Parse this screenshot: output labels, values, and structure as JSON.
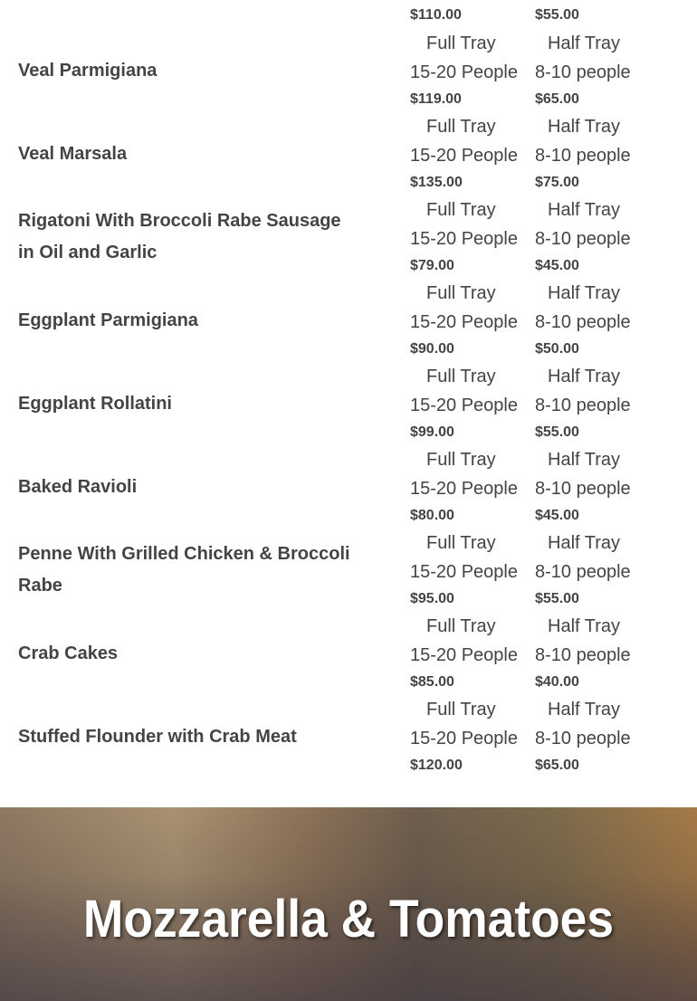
{
  "top_prices": {
    "full": "$110.00",
    "half": "$55.00"
  },
  "items": [
    {
      "name": "Veal Parmigiana",
      "full_label": "Full Tray",
      "full_people": "15-20 People",
      "full_price": "$119.00",
      "half_label": "Half Tray",
      "half_people": "8-10 people",
      "half_price": "$65.00"
    },
    {
      "name": "Veal Marsala",
      "full_label": "Full Tray",
      "full_people": "15-20 People",
      "full_price": "$135.00",
      "half_label": "Half Tray",
      "half_people": "8-10 people",
      "half_price": "$75.00"
    },
    {
      "name": "Rigatoni With Broccoli Rabe Sausage in Oil and Garlic",
      "full_label": "Full Tray",
      "full_people": "15-20 People",
      "full_price": "$79.00",
      "half_label": "Half Tray",
      "half_people": "8-10 people",
      "half_price": "$45.00"
    },
    {
      "name": "Eggplant Parmigiana",
      "full_label": "Full Tray",
      "full_people": "15-20 People",
      "full_price": "$90.00",
      "half_label": "Half Tray",
      "half_people": "8-10 people",
      "half_price": "$50.00"
    },
    {
      "name": "Eggplant Rollatini",
      "full_label": "Full Tray",
      "full_people": "15-20 People",
      "full_price": "$99.00",
      "half_label": "Half Tray",
      "half_people": "8-10 people",
      "half_price": "$55.00"
    },
    {
      "name": "Baked Ravioli",
      "full_label": "Full Tray",
      "full_people": "15-20 People",
      "full_price": "$80.00",
      "half_label": "Half Tray",
      "half_people": "8-10 people",
      "half_price": "$45.00"
    },
    {
      "name": "Penne With Grilled Chicken & Broccoli Rabe",
      "full_label": "Full Tray",
      "full_people": "15-20 People",
      "full_price": "$95.00",
      "half_label": "Half Tray",
      "half_people": "8-10 people",
      "half_price": "$55.00"
    },
    {
      "name": "Crab Cakes",
      "full_label": "Full Tray",
      "full_people": "15-20 People",
      "full_price": "$85.00",
      "half_label": "Half Tray",
      "half_people": "8-10 people",
      "half_price": "$40.00"
    },
    {
      "name": "Stuffed Flounder with Crab Meat",
      "full_label": "Full Tray",
      "full_people": "15-20 People",
      "full_price": "$120.00",
      "half_label": "Half Tray",
      "half_people": "8-10 people",
      "half_price": "$65.00"
    }
  ],
  "banner": {
    "title": "Mozzarella & Tomatoes"
  }
}
